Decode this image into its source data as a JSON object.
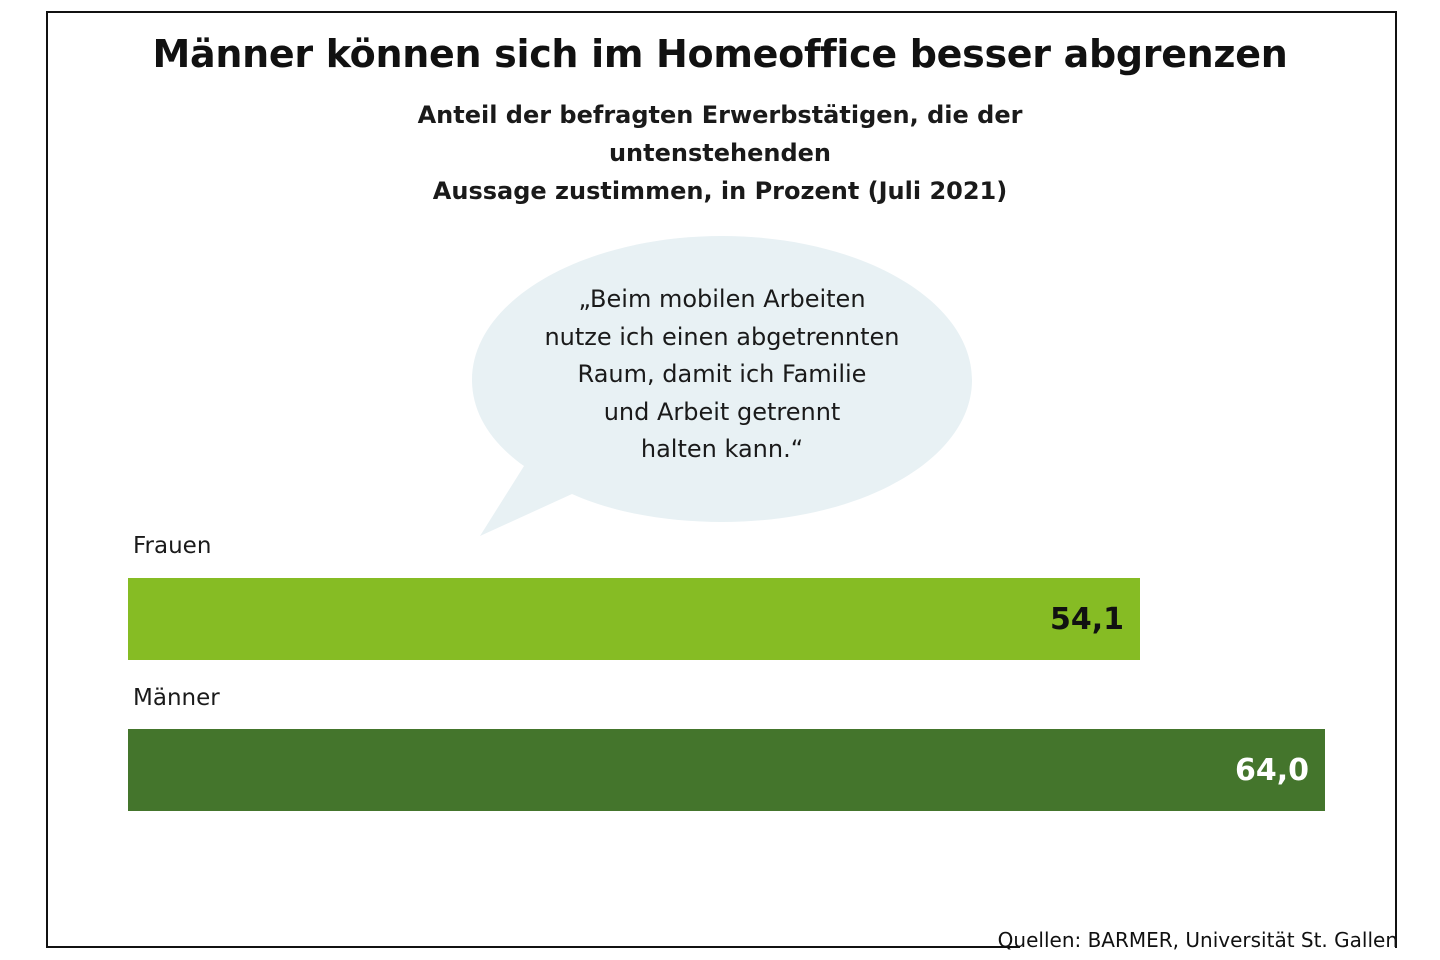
{
  "chart_data": {
    "type": "bar",
    "orientation": "horizontal",
    "title": "Männer können sich im Homeoffice besser abgrenzen",
    "subtitle_lines": [
      "Anteil der befragten Erwerbstätigen, die der untenstehenden",
      "Aussage zustimmen, in Prozent (Juli 2021)"
    ],
    "annotation": "„Beim mobilen Arbeiten\nnutze ich einen abgetrennten\nRaum, damit ich Familie\nund Arbeit getrennt\nhalten kann.“",
    "categories": [
      "Frauen",
      "Männer"
    ],
    "values": [
      54.1,
      64.0
    ],
    "value_labels": [
      "54,1",
      "64,0"
    ],
    "colors": [
      "#86bc24",
      "#44752c"
    ],
    "value_label_colors": [
      "#111111",
      "#ffffff"
    ],
    "xlim": [
      0,
      64.0
    ],
    "xlabel": "",
    "ylabel": "",
    "grid": false,
    "legend": "none"
  },
  "source": "Quellen: BARMER, Universität St. Gallen",
  "colors": {
    "bubble_fill": "#e8f1f4",
    "frame": "#111111"
  }
}
